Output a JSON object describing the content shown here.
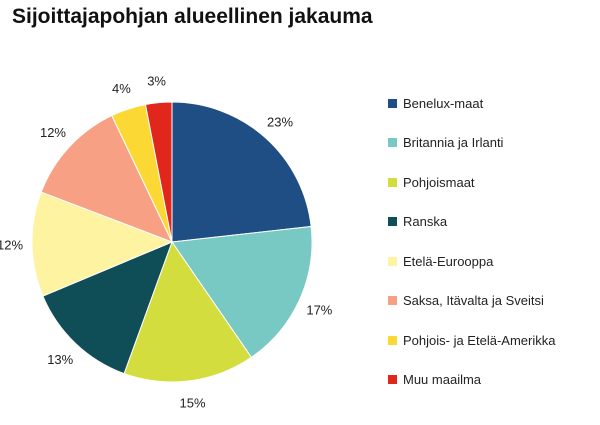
{
  "chart_data": {
    "type": "pie",
    "title": "Sijoittajapohjan alueellinen jakauma",
    "legend_position": "right",
    "slices": [
      {
        "label": "Benelux-maat",
        "value": 23,
        "value_label": "23%",
        "color": "#1f4e85"
      },
      {
        "label": "Britannia ja Irlanti",
        "value": 17,
        "value_label": "17%",
        "color": "#78c8c4"
      },
      {
        "label": "Pohjoismaat",
        "value": 15,
        "value_label": "15%",
        "color": "#d4dd3e"
      },
      {
        "label": "Ranska",
        "value": 13,
        "value_label": "13%",
        "color": "#0f4d57"
      },
      {
        "label": "Etelä-Eurooppa",
        "value": 12,
        "value_label": "12%",
        "color": "#fdf3a0"
      },
      {
        "label": "Saksa, Itävalta ja Sveitsi",
        "value": 12,
        "value_label": "12%",
        "color": "#f7a083"
      },
      {
        "label": "Pohjois- ja Etelä-Amerikka",
        "value": 4,
        "value_label": "4%",
        "color": "#fcd835"
      },
      {
        "label": "Muu maailma",
        "value": 3,
        "value_label": "3%",
        "color": "#e1261c"
      }
    ]
  }
}
